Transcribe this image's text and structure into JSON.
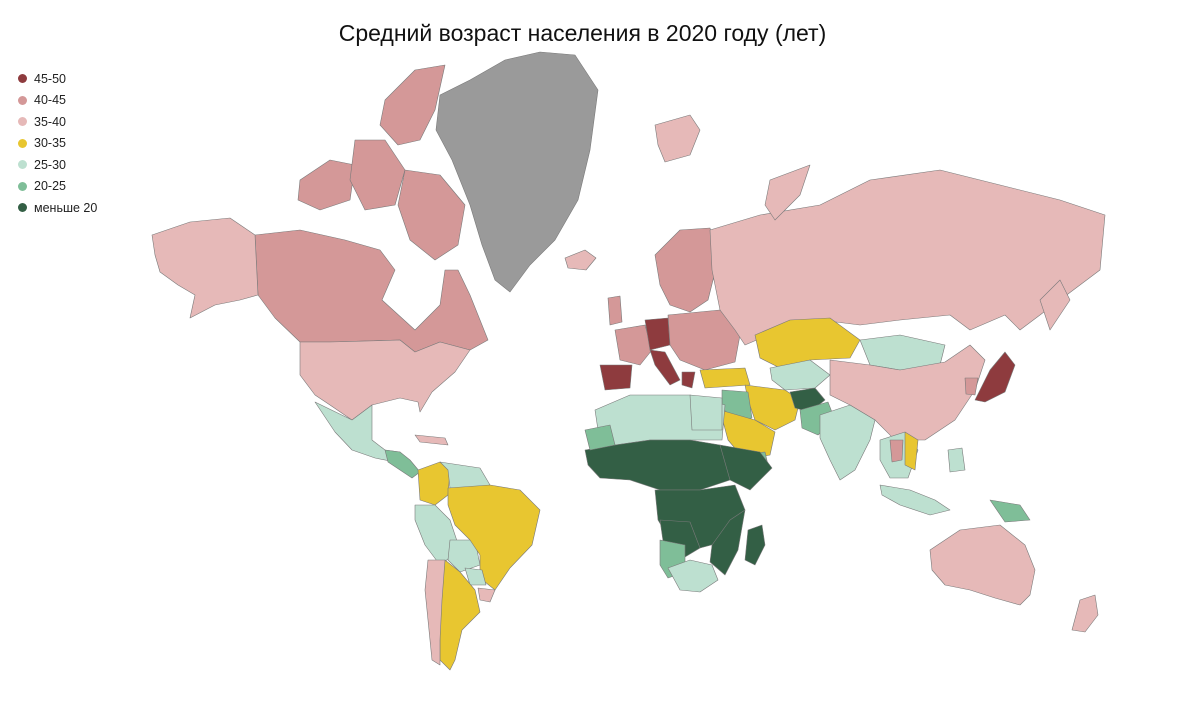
{
  "title": "Средний возраст населения в 2020 году (лет)",
  "colors": {
    "c45_50": "#8e3b3e",
    "c40_45": "#d49898",
    "c35_40": "#e6b9b8",
    "c30_35": "#e8c630",
    "c25_30": "#bde0d0",
    "c20_25": "#7fbe98",
    "lt20": "#335f45",
    "nodata": "#9a9a9a"
  },
  "legend": [
    {
      "label": "45-50",
      "color": "#8e3b3e"
    },
    {
      "label": "40-45",
      "color": "#d49898"
    },
    {
      "label": "35-40",
      "color": "#e6b9b8"
    },
    {
      "label": "30-35",
      "color": "#e8c630"
    },
    {
      "label": "25-30",
      "color": "#bde0d0"
    },
    {
      "label": "20-25",
      "color": "#7fbe98"
    },
    {
      "label": "меньше 20",
      "color": "#335f45"
    }
  ]
}
